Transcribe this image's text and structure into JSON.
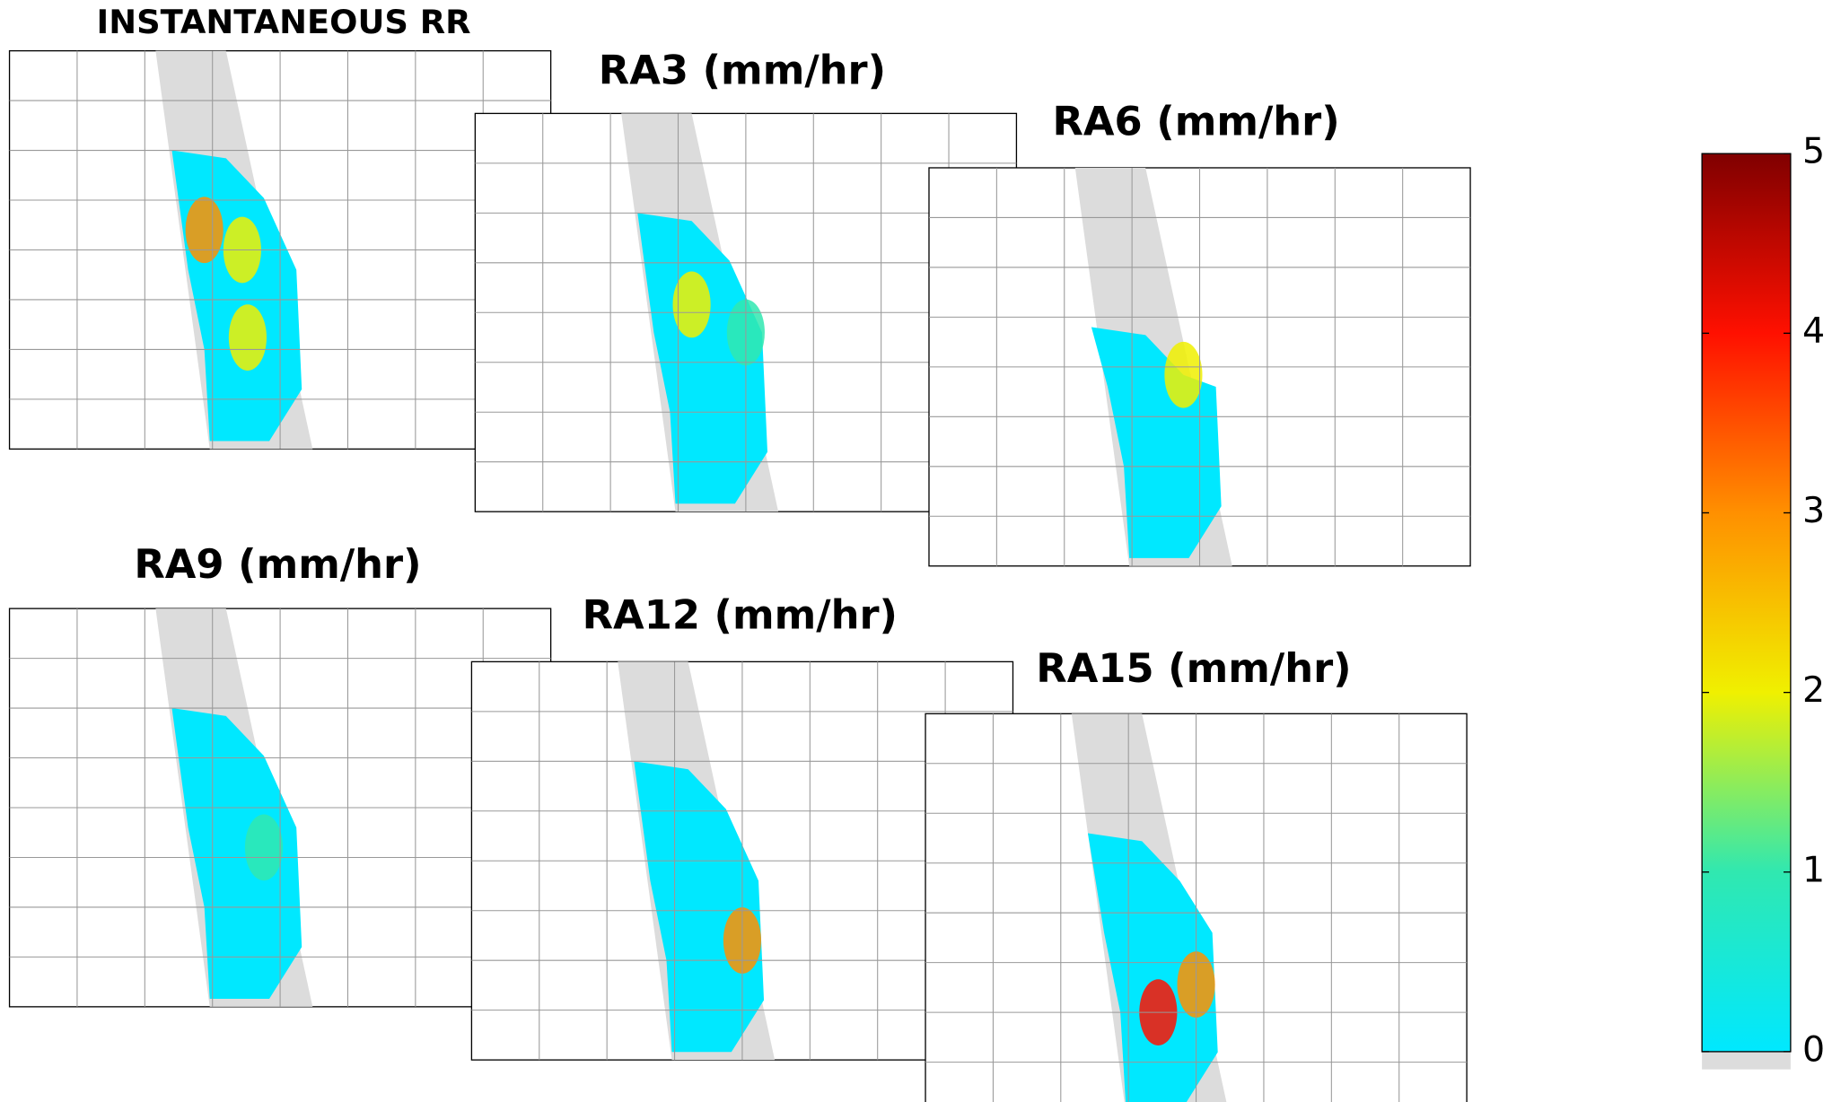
{
  "chart_data": [
    {
      "type": "heatmap",
      "title": "INSTANTANEOUS RR"
    },
    {
      "type": "heatmap",
      "title": "RA3 (mm/hr)"
    },
    {
      "type": "heatmap",
      "title": "RA6 (mm/hr)"
    },
    {
      "type": "heatmap",
      "title": "RA9 (mm/hr)"
    },
    {
      "type": "heatmap",
      "title": "RA12 (mm/hr)"
    },
    {
      "type": "heatmap",
      "title": "RA15 (mm/hr)"
    },
    {
      "type": "colorbar",
      "ylim": [
        0,
        5
      ],
      "yticks": [
        0,
        1,
        2,
        3,
        4,
        5
      ],
      "colors": [
        "#00e8ff",
        "#30e8b0",
        "#f0f000",
        "#ff9000",
        "#ff1000",
        "#800000"
      ]
    }
  ]
}
